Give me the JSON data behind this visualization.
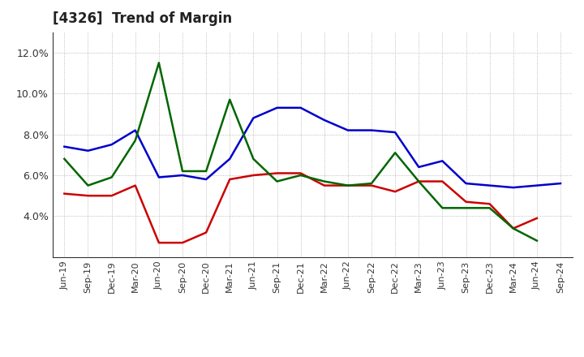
{
  "title": "[4326]  Trend of Margin",
  "x_labels": [
    "Jun-19",
    "Sep-19",
    "Dec-19",
    "Mar-20",
    "Jun-20",
    "Sep-20",
    "Dec-20",
    "Mar-21",
    "Jun-21",
    "Sep-21",
    "Dec-21",
    "Mar-22",
    "Jun-22",
    "Sep-22",
    "Dec-22",
    "Mar-23",
    "Jun-23",
    "Sep-23",
    "Dec-23",
    "Mar-24",
    "Jun-24",
    "Sep-24"
  ],
  "ordinary_income": [
    7.4,
    7.2,
    7.5,
    8.2,
    5.9,
    6.0,
    5.8,
    6.8,
    8.8,
    9.3,
    9.3,
    8.7,
    8.2,
    8.2,
    8.1,
    6.4,
    6.7,
    5.6,
    5.5,
    5.4,
    5.5,
    5.6
  ],
  "net_income": [
    5.1,
    5.0,
    5.0,
    5.5,
    2.7,
    2.7,
    3.2,
    5.8,
    6.0,
    6.1,
    6.1,
    5.5,
    5.5,
    5.5,
    5.2,
    5.7,
    5.7,
    4.7,
    4.6,
    3.4,
    3.9,
    null
  ],
  "operating_cashflow": [
    6.8,
    5.5,
    5.9,
    7.7,
    11.5,
    6.2,
    6.2,
    9.7,
    6.8,
    5.7,
    6.0,
    5.7,
    5.5,
    5.6,
    7.1,
    5.7,
    4.4,
    4.4,
    4.4,
    3.4,
    2.8,
    null
  ],
  "ylim_min": 2.0,
  "ylim_max": 13.0,
  "yticks": [
    4.0,
    6.0,
    8.0,
    10.0,
    12.0
  ],
  "ytick_labels": [
    "4.0%",
    "6.0%",
    "8.0%",
    "10.0%",
    "12.0%"
  ],
  "color_oi": "#0000CC",
  "color_ni": "#CC0000",
  "color_ocf": "#006600",
  "bg_color": "#FFFFFF",
  "plot_bg": "#FFFFFF",
  "grid_color": "#AAAAAA",
  "title_fontsize": 12,
  "tick_fontsize": 8
}
